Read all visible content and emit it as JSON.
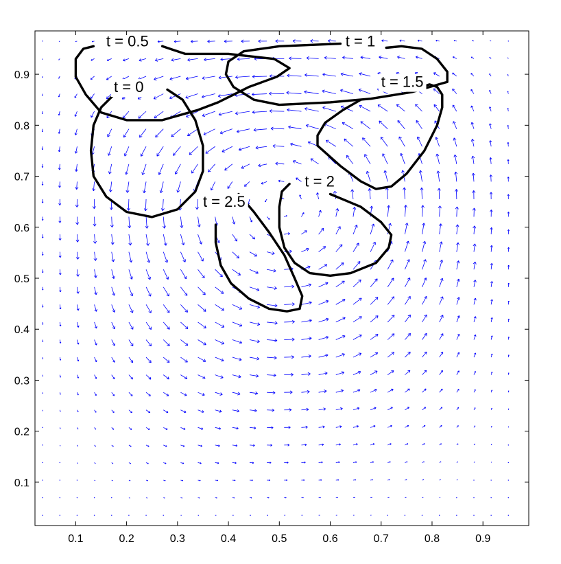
{
  "chart_data": {
    "type": "line",
    "title": "",
    "xlabel": "",
    "ylabel": "",
    "xlim": [
      0.02,
      0.99
    ],
    "ylim": [
      0.015,
      0.985
    ],
    "grid": false,
    "xticks": [
      "0.1",
      "0.2",
      "0.3",
      "0.4",
      "0.5",
      "0.6",
      "0.7",
      "0.8",
      "0.9"
    ],
    "yticks": [
      "0.1",
      "0.2",
      "0.3",
      "0.4",
      "0.5",
      "0.6",
      "0.7",
      "0.8",
      "0.9"
    ],
    "vector_field": {
      "color": "#0000ff",
      "description": "lid-driven cavity flow, clockwise vortex centered near (0.6, 0.75)"
    },
    "series": [
      {
        "name": "t = 0",
        "color": "#000000",
        "label_text": "t = 0",
        "label_x": 0.175,
        "label_y": 0.865,
        "points": [
          [
            0.28,
            0.87
          ],
          [
            0.31,
            0.85
          ],
          [
            0.335,
            0.81
          ],
          [
            0.35,
            0.76
          ],
          [
            0.35,
            0.71
          ],
          [
            0.335,
            0.67
          ],
          [
            0.3,
            0.635
          ],
          [
            0.25,
            0.62
          ],
          [
            0.2,
            0.63
          ],
          [
            0.16,
            0.66
          ],
          [
            0.135,
            0.7
          ],
          [
            0.13,
            0.75
          ],
          [
            0.135,
            0.8
          ],
          [
            0.15,
            0.835
          ],
          [
            0.175,
            0.86
          ]
        ]
      },
      {
        "name": "t = 0.5",
        "color": "#000000",
        "label_text": "t = 0.5",
        "label_x": 0.16,
        "label_y": 0.955,
        "points": [
          [
            0.27,
            0.955
          ],
          [
            0.315,
            0.94
          ],
          [
            0.4,
            0.94
          ],
          [
            0.49,
            0.93
          ],
          [
            0.52,
            0.912
          ],
          [
            0.495,
            0.895
          ],
          [
            0.44,
            0.875
          ],
          [
            0.41,
            0.86
          ],
          [
            0.38,
            0.845
          ],
          [
            0.34,
            0.83
          ],
          [
            0.27,
            0.81
          ],
          [
            0.2,
            0.81
          ],
          [
            0.15,
            0.825
          ],
          [
            0.12,
            0.86
          ],
          [
            0.1,
            0.895
          ],
          [
            0.1,
            0.93
          ],
          [
            0.115,
            0.95
          ],
          [
            0.135,
            0.955
          ]
        ]
      },
      {
        "name": "t = 1",
        "color": "#000000",
        "label_text": "t = 1",
        "label_x": 0.63,
        "label_y": 0.955,
        "points": [
          [
            0.62,
            0.96
          ],
          [
            0.5,
            0.955
          ],
          [
            0.43,
            0.945
          ],
          [
            0.4,
            0.925
          ],
          [
            0.395,
            0.9
          ],
          [
            0.41,
            0.875
          ],
          [
            0.45,
            0.85
          ],
          [
            0.5,
            0.84
          ],
          [
            0.6,
            0.845
          ],
          [
            0.68,
            0.852
          ],
          [
            0.76,
            0.865
          ],
          [
            0.83,
            0.885
          ],
          [
            0.83,
            0.905
          ],
          [
            0.81,
            0.93
          ],
          [
            0.78,
            0.95
          ],
          [
            0.74,
            0.955
          ],
          [
            0.71,
            0.952
          ]
        ]
      },
      {
        "name": "t = 1.5",
        "color": "#000000",
        "label_text": "t = 1.5",
        "label_x": 0.7,
        "label_y": 0.875,
        "points": [
          [
            0.66,
            0.85
          ],
          [
            0.625,
            0.83
          ],
          [
            0.59,
            0.805
          ],
          [
            0.575,
            0.78
          ],
          [
            0.575,
            0.76
          ],
          [
            0.62,
            0.72
          ],
          [
            0.66,
            0.69
          ],
          [
            0.69,
            0.675
          ],
          [
            0.72,
            0.68
          ],
          [
            0.75,
            0.705
          ],
          [
            0.785,
            0.75
          ],
          [
            0.81,
            0.8
          ],
          [
            0.82,
            0.835
          ],
          [
            0.82,
            0.86
          ],
          [
            0.81,
            0.875
          ],
          [
            0.795,
            0.88
          ],
          [
            0.78,
            0.875
          ]
        ]
      },
      {
        "name": "t = 2",
        "color": "#000000",
        "label_text": "t = 2",
        "label_x": 0.55,
        "label_y": 0.68,
        "points": [
          [
            0.6,
            0.665
          ],
          [
            0.66,
            0.64
          ],
          [
            0.7,
            0.61
          ],
          [
            0.72,
            0.585
          ],
          [
            0.715,
            0.56
          ],
          [
            0.69,
            0.53
          ],
          [
            0.64,
            0.51
          ],
          [
            0.6,
            0.505
          ],
          [
            0.56,
            0.51
          ],
          [
            0.53,
            0.53
          ],
          [
            0.51,
            0.56
          ],
          [
            0.5,
            0.6
          ],
          [
            0.5,
            0.64
          ],
          [
            0.505,
            0.67
          ],
          [
            0.52,
            0.685
          ]
        ]
      },
      {
        "name": "t = 2.5",
        "color": "#000000",
        "label_text": "t = 2.5",
        "label_x": 0.35,
        "label_y": 0.64,
        "points": [
          [
            0.42,
            0.665
          ],
          [
            0.45,
            0.63
          ],
          [
            0.48,
            0.59
          ],
          [
            0.51,
            0.545
          ],
          [
            0.53,
            0.5
          ],
          [
            0.545,
            0.465
          ],
          [
            0.54,
            0.44
          ],
          [
            0.515,
            0.435
          ],
          [
            0.48,
            0.44
          ],
          [
            0.44,
            0.46
          ],
          [
            0.405,
            0.49
          ],
          [
            0.385,
            0.525
          ],
          [
            0.375,
            0.57
          ],
          [
            0.375,
            0.605
          ]
        ]
      }
    ]
  }
}
